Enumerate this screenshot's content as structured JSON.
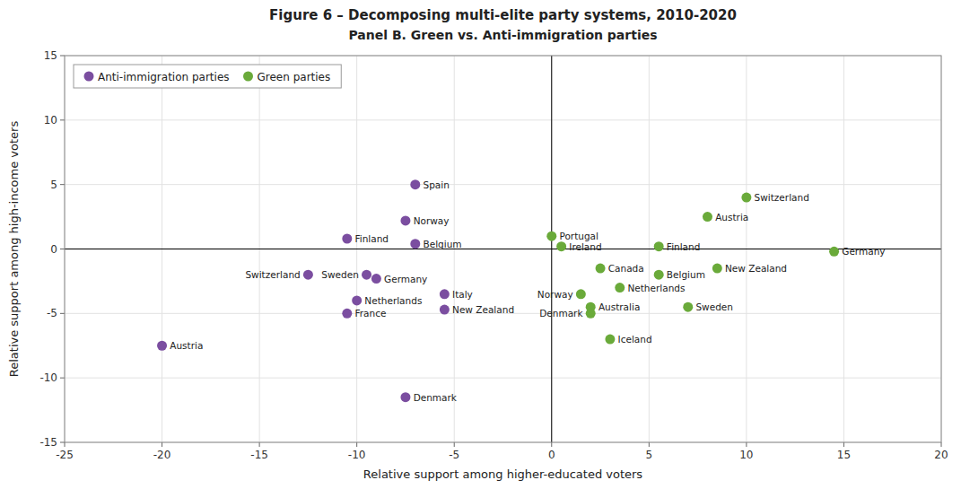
{
  "chart_data": {
    "type": "scatter",
    "title": "Figure 6 – Decomposing multi-elite party systems, 2010-2020",
    "subtitle": "Panel B. Green vs. Anti-immigration parties",
    "x_label": "Relative support among higher-educated voters",
    "y_label": "Relative support among high-income voters",
    "xlim": [
      -25,
      20
    ],
    "ylim": [
      -15,
      15
    ],
    "xticks": [
      -25,
      -20,
      -15,
      -10,
      -5,
      0,
      5,
      10,
      15,
      20
    ],
    "yticks": [
      -15,
      -10,
      -5,
      0,
      5,
      10,
      15
    ],
    "grid": true,
    "legend": "upper left",
    "series": [
      {
        "name": "Anti-immigration parties",
        "color": "#7B4EA0",
        "labels": [
          "Spain",
          "Norway",
          "Finland",
          "Belgium",
          "Switzerland",
          "Sweden",
          "Germany",
          "Netherlands",
          "France",
          "Italy",
          "New Zealand",
          "Austria",
          "Denmark"
        ],
        "x": [
          -7.0,
          -7.5,
          -10.5,
          -7.0,
          -12.5,
          -9.5,
          -9.0,
          -10.0,
          -10.5,
          -5.5,
          -5.5,
          -20.0,
          -7.5
        ],
        "values": [
          5.0,
          2.2,
          0.8,
          0.4,
          -2.0,
          -2.0,
          -2.3,
          -4.0,
          -5.0,
          -3.5,
          -4.7,
          -7.5,
          -11.5
        ]
      },
      {
        "name": "Green parties",
        "color": "#6AAA3A",
        "labels": [
          "Portugal",
          "Ireland",
          "Canada",
          "Finland",
          "Norway",
          "Netherlands",
          "Belgium",
          "New Zealand",
          "Australia",
          "Denmark",
          "Sweden",
          "Iceland",
          "Switzerland",
          "Austria",
          "Germany"
        ],
        "x": [
          0.0,
          0.5,
          2.5,
          5.5,
          1.5,
          3.5,
          5.5,
          8.5,
          2.0,
          2.0,
          7.0,
          3.0,
          10.0,
          8.0,
          14.5
        ],
        "values": [
          1.0,
          0.2,
          -1.5,
          0.2,
          -3.5,
          -3.0,
          -2.0,
          -1.5,
          -4.5,
          -5.0,
          -4.5,
          -7.0,
          4.0,
          2.5,
          -0.2
        ]
      }
    ]
  }
}
